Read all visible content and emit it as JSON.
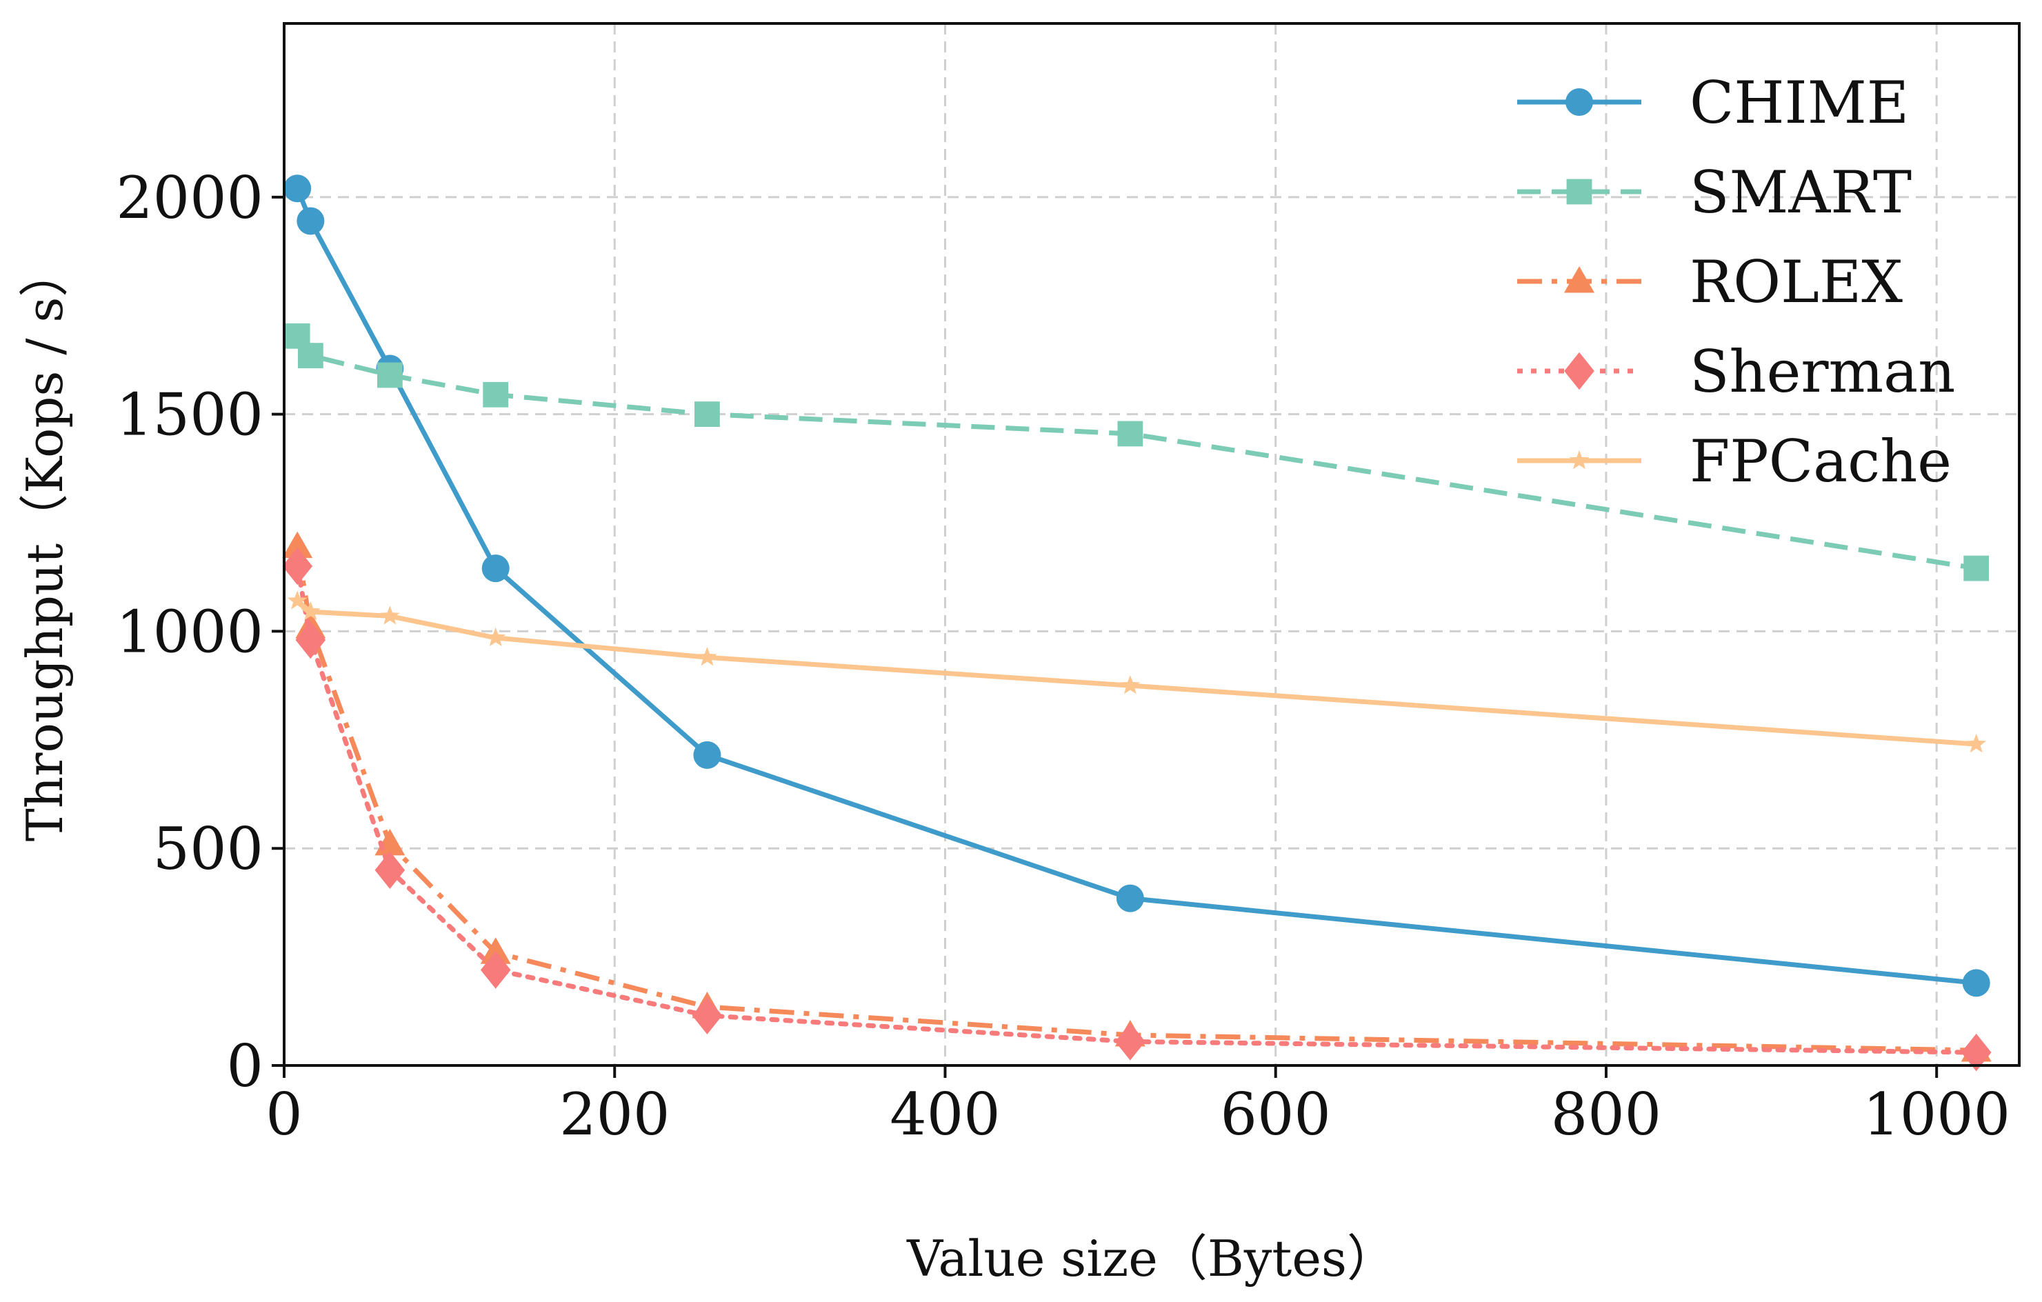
{
  "chart_data": {
    "type": "line",
    "title": "",
    "xlabel": "Value size（Bytes）",
    "ylabel": "Throughput（Kops / s）",
    "xlim": [
      0,
      1050
    ],
    "ylim": [
      0,
      2400
    ],
    "xticks": [
      0,
      200,
      400,
      600,
      800,
      1000
    ],
    "yticks": [
      0,
      500,
      1000,
      1500,
      2000
    ],
    "grid": true,
    "legend_position": "top-right",
    "series": [
      {
        "name": "CHIME",
        "color": "#3f9bc9",
        "marker": "circle",
        "linestyle": "solid",
        "x": [
          8,
          16,
          64,
          128,
          256,
          512,
          1024
        ],
        "y": [
          2020,
          1945,
          1605,
          1145,
          715,
          385,
          190
        ]
      },
      {
        "name": "SMART",
        "color": "#7ccbb4",
        "marker": "square",
        "linestyle": "dashed",
        "x": [
          8,
          16,
          64,
          128,
          256,
          512,
          1024
        ],
        "y": [
          1680,
          1635,
          1590,
          1545,
          1500,
          1455,
          1145
        ]
      },
      {
        "name": "ROLEX",
        "color": "#f6895a",
        "marker": "triangle",
        "linestyle": "dashdot",
        "x": [
          8,
          16,
          64,
          128,
          256,
          512,
          1024
        ],
        "y": [
          1195,
          1010,
          510,
          260,
          135,
          70,
          35
        ]
      },
      {
        "name": "Sherman",
        "color": "#f77b7b",
        "marker": "diamond",
        "linestyle": "dotted",
        "x": [
          8,
          16,
          64,
          128,
          256,
          512,
          1024
        ],
        "y": [
          1150,
          980,
          450,
          220,
          115,
          55,
          30
        ]
      },
      {
        "name": "FPCache",
        "color": "#fcc58e",
        "marker": "star",
        "linestyle": "solid",
        "x": [
          8,
          16,
          64,
          128,
          256,
          512,
          1024
        ],
        "y": [
          1070,
          1045,
          1035,
          985,
          940,
          875,
          740
        ]
      }
    ]
  }
}
